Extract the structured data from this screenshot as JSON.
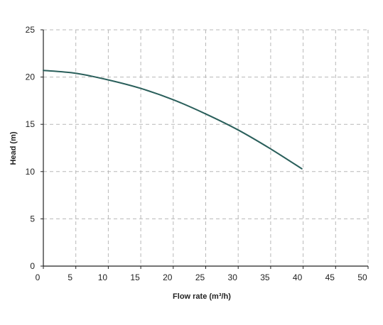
{
  "chart_data": {
    "type": "line",
    "title": "",
    "xlabel": "Flow rate (m³/h)",
    "ylabel": "Head (m)",
    "xlim": [
      0,
      50
    ],
    "ylim": [
      0,
      25
    ],
    "xticks": [
      0,
      5,
      10,
      15,
      20,
      25,
      30,
      35,
      40,
      45,
      50
    ],
    "yticks": [
      0,
      5,
      10,
      15,
      20,
      25
    ],
    "grid": true,
    "grid_style": "dashed",
    "legend": "none",
    "series": [
      {
        "color": "#2a5f5b",
        "x": [
          0,
          5,
          10,
          15,
          20,
          25,
          30,
          35,
          39.8
        ],
        "y": [
          20.7,
          20.4,
          19.7,
          18.8,
          17.6,
          16.1,
          14.4,
          12.4,
          10.3
        ]
      }
    ]
  }
}
